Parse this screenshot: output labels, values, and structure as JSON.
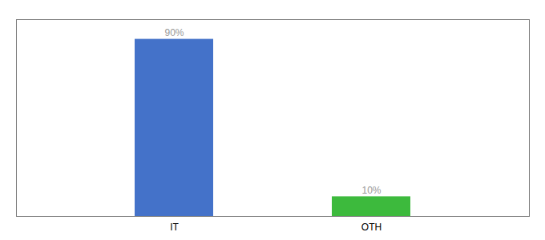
{
  "chart_data": {
    "type": "bar",
    "categories": [
      "IT",
      "OTH"
    ],
    "values": [
      90,
      10
    ],
    "value_labels": [
      "90%",
      "10%"
    ],
    "colors": [
      "#4472c9",
      "#3dba3d"
    ],
    "ylim": [
      0,
      100
    ],
    "data_labels": true,
    "tick_labels": "x"
  }
}
